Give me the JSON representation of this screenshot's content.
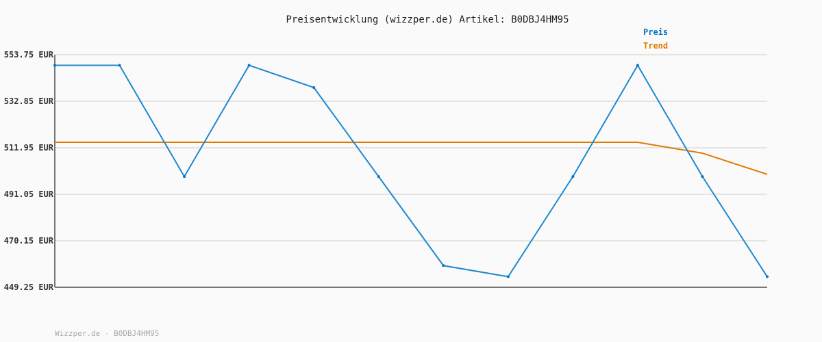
{
  "chart_data": {
    "type": "line",
    "title": "Preisentwicklung (wizzper.de) Artikel: B0DBJ4HM95",
    "xlabel": "",
    "ylabel": "",
    "ylim": [
      449.25,
      553.75
    ],
    "y_ticks": [
      "553.75 EUR",
      "532.85 EUR",
      "511.95 EUR",
      "491.05 EUR",
      "470.15 EUR",
      "449.25 EUR"
    ],
    "y_tick_values": [
      553.75,
      532.85,
      511.95,
      491.05,
      470.15,
      449.25
    ],
    "grid": true,
    "legend_placement": "top-right",
    "x": [
      1,
      2,
      3,
      4,
      5,
      6,
      7,
      8,
      9,
      10,
      11,
      12
    ],
    "series": [
      {
        "name": "Preis",
        "color": "#1e88d0",
        "values": [
          549,
          549,
          499,
          549,
          539,
          499,
          459,
          454,
          499,
          549,
          499,
          454
        ]
      },
      {
        "name": "Trend",
        "color": "#e07b00",
        "values": [
          514.4,
          514.4,
          514.4,
          514.4,
          514.4,
          514.4,
          514.4,
          514.4,
          514.4,
          514.4,
          509.5,
          500
        ]
      }
    ]
  },
  "footer": "Wizzper.de - B0DBJ4HM95",
  "colors": {
    "preis_legend": "#0a74c4",
    "trend_legend": "#e07b00",
    "grid": "#e4e4e4",
    "axis": "#777777"
  }
}
